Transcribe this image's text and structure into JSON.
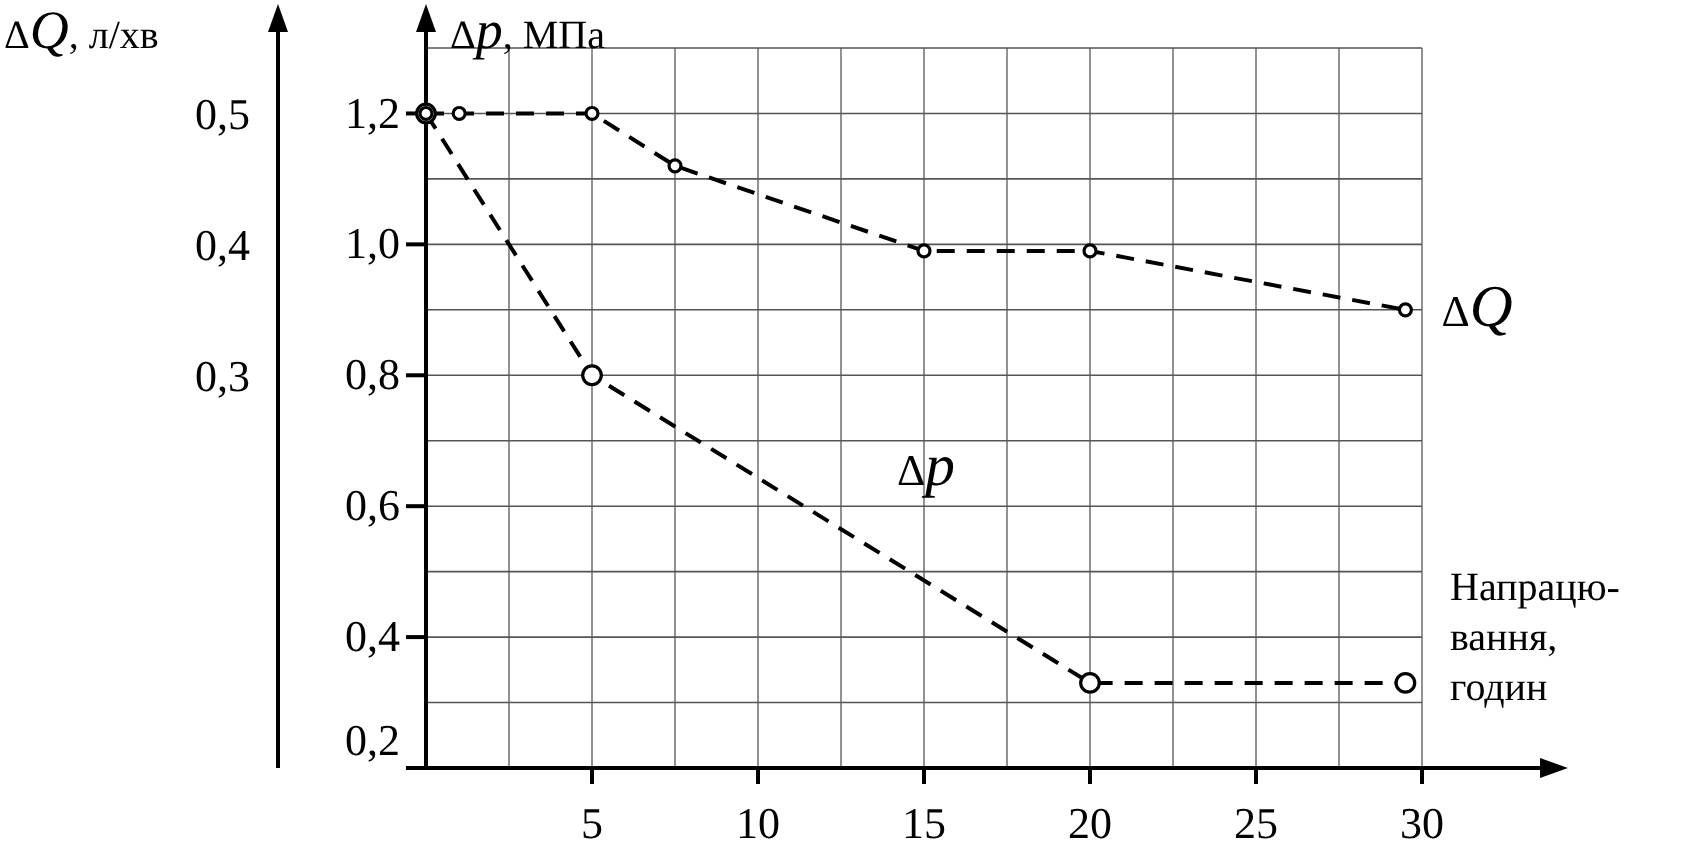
{
  "chart_data": {
    "type": "line",
    "xlabel": "Напрацю- вання, годин",
    "ylabel": "Δp, МПа",
    "y2label": "ΔQ, л/хв",
    "xlim": [
      0,
      30
    ],
    "xticks": [
      5,
      10,
      15,
      20,
      25,
      30
    ],
    "ylim": [
      0.2,
      1.3
    ],
    "yticks": [
      {
        "value": 0.2,
        "label": "0,2"
      },
      {
        "value": 0.4,
        "label": "0,4"
      },
      {
        "value": 0.6,
        "label": "0,6"
      },
      {
        "value": 0.8,
        "label": "0,8"
      },
      {
        "value": 1.0,
        "label": "1,0"
      },
      {
        "value": 1.2,
        "label": "1,2"
      }
    ],
    "y2lim": [
      0,
      0.55
    ],
    "y2ticks": [
      {
        "value": 0.3,
        "label": "0,3"
      },
      {
        "value": 0.4,
        "label": "0,4"
      },
      {
        "value": 0.5,
        "label": "0,5"
      }
    ],
    "grid": true,
    "marker": "circle",
    "line_style": "dashed",
    "series": [
      {
        "name": "ΔQ",
        "color": "#000000",
        "axis": "y2",
        "x": [
          0,
          1,
          5,
          7.5,
          15,
          20,
          29.5
        ],
        "values": [
          0.5,
          0.5,
          0.5,
          0.46,
          0.395,
          0.395,
          0.35
        ]
      },
      {
        "name": "Δp",
        "color": "#000000",
        "x": [
          0,
          5,
          20,
          29.5
        ],
        "values": [
          1.2,
          0.8,
          0.33,
          0.33
        ]
      }
    ]
  }
}
